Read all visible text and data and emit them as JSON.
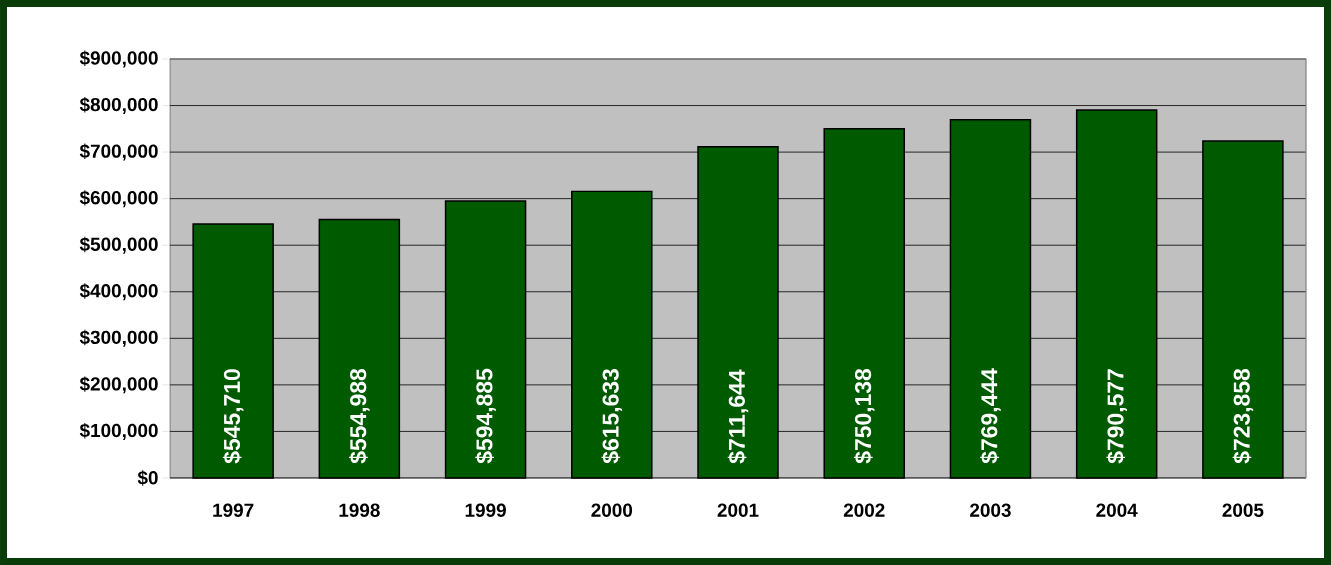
{
  "chart_data": {
    "type": "bar",
    "categories": [
      "1997",
      "1998",
      "1999",
      "2000",
      "2001",
      "2002",
      "2003",
      "2004",
      "2005"
    ],
    "values": [
      545710,
      554988,
      594885,
      615633,
      711644,
      750138,
      769444,
      790577,
      723858
    ],
    "value_labels": [
      "$545,710",
      "$554,988",
      "$594,885",
      "$615,633",
      "$711,644",
      "$750,138",
      "$769,444",
      "$790,577",
      "$723,858"
    ],
    "color": "#005a00",
    "ylim": [
      0,
      900000
    ],
    "yticks": [
      {
        "value": 0,
        "label": "$0"
      },
      {
        "value": 100000,
        "label": "$100,000"
      },
      {
        "value": 200000,
        "label": "$200,000"
      },
      {
        "value": 300000,
        "label": "$300,000"
      },
      {
        "value": 400000,
        "label": "$400,000"
      },
      {
        "value": 500000,
        "label": "$500,000"
      },
      {
        "value": 600000,
        "label": "$600,000"
      },
      {
        "value": 700000,
        "label": "$700,000"
      },
      {
        "value": 800000,
        "label": "$800,000"
      },
      {
        "value": 900000,
        "label": "$900,000"
      }
    ],
    "grid": "y"
  }
}
